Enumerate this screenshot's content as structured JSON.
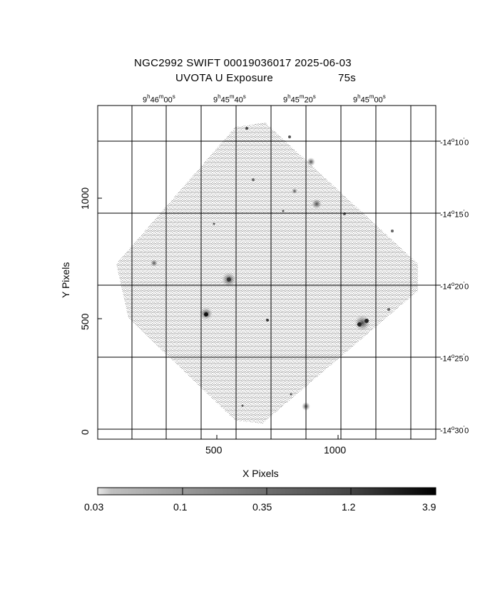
{
  "title": {
    "line1": "NGC2992 SWIFT 00019036017 2025-06-03",
    "line2_left": "UVOTA U Exposure",
    "line2_right": "75s"
  },
  "ra_labels": [
    {
      "h": "9",
      "m": "46",
      "s": "00"
    },
    {
      "h": "9",
      "m": "45",
      "s": "40"
    },
    {
      "h": "9",
      "m": "45",
      "s": "20"
    },
    {
      "h": "9",
      "m": "45",
      "s": "00"
    }
  ],
  "dec_labels": [
    {
      "d": "-14",
      "m": "10",
      "s": "0"
    },
    {
      "d": "-14",
      "m": "15",
      "s": "0"
    },
    {
      "d": "-14",
      "m": "20",
      "s": "0"
    },
    {
      "d": "-14",
      "m": "25",
      "s": "0"
    },
    {
      "d": "-14",
      "m": "30",
      "s": "0"
    }
  ],
  "x_axis": {
    "label": "X Pixels",
    "ticks": [
      "500",
      "1000"
    ]
  },
  "y_axis": {
    "label": "Y Pixels",
    "ticks": [
      "0",
      "500",
      "1000"
    ]
  },
  "colorbar": {
    "labels": [
      "0.03",
      "0.1",
      "0.35",
      "1.2",
      "3.9"
    ]
  }
}
